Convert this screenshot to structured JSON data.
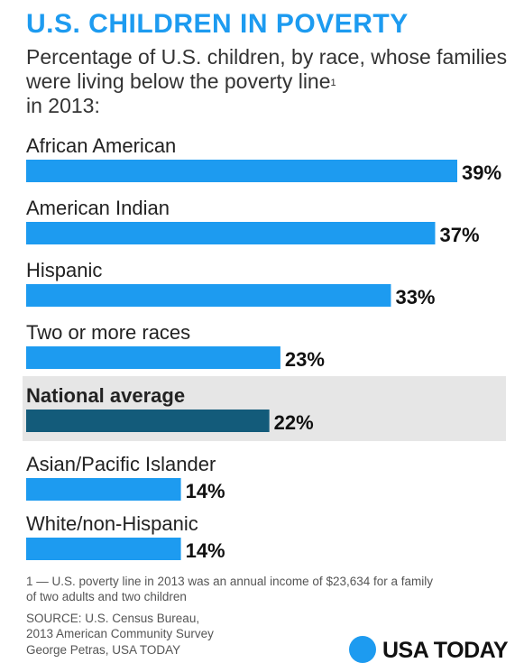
{
  "header": {
    "title": "U.S. CHILDREN IN POVERTY",
    "subtitle": "Percentage of U.S. children, by race, whose families were living below the poverty line",
    "subtitle_sup": "1",
    "subtitle_end": "in 2013:"
  },
  "colors": {
    "bar": "#1d9bf0",
    "highlight_bar": "#135b7a",
    "highlight_band": "#e6e6e6",
    "title": "#1d9bf0"
  },
  "chart_data": {
    "type": "bar",
    "orientation": "horizontal",
    "categories": [
      "African American",
      "American Indian",
      "Hispanic",
      "Two or more races",
      "National average",
      "Asian/Pacific Islander",
      "White/non-Hispanic"
    ],
    "values": [
      39,
      37,
      33,
      23,
      22,
      14,
      14
    ],
    "value_labels": [
      "39%",
      "37%",
      "33%",
      "23%",
      "22%",
      "14%",
      "14%"
    ],
    "highlight_index": 4,
    "xlim": [
      0,
      39
    ],
    "grid": false,
    "legend": "none"
  },
  "footer": {
    "footnote": "1 — U.S. poverty line in 2013 was an annual income of $23,634 for a family of two adults and two children",
    "source_line1": "SOURCE:  U.S. Census Bureau,",
    "source_line2": "2013 American Community Survey",
    "credit": "George Petras, USA TODAY",
    "logo_text": "USA TODAY",
    "logo_icon": "usa-today-dot-icon"
  }
}
